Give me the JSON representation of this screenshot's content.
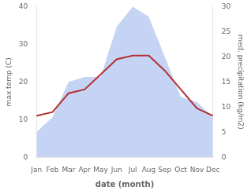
{
  "chart_data": {
    "type": "line",
    "categories": [
      "Jan",
      "Feb",
      "Mar",
      "Apr",
      "May",
      "Jun",
      "Jul",
      "Aug",
      "Sep",
      "Oct",
      "Nov",
      "Dec"
    ],
    "series": [
      {
        "type": "line",
        "color": "#b33030",
        "values": [
          11,
          12,
          17,
          18,
          22,
          26,
          27,
          27,
          23,
          18,
          13,
          11
        ]
      },
      {
        "type": "area",
        "color": "#c5d4f5",
        "axis": "y2",
        "values": [
          5,
          8,
          15,
          16,
          16,
          26,
          30,
          28,
          20,
          12,
          11,
          8
        ]
      }
    ],
    "xlabel": "date (month)",
    "ylabel": "max temp (C)",
    "y2label": "med. precipitation (kg/m2)",
    "ylim": [
      0,
      40
    ],
    "yticks": [
      0,
      10,
      20,
      30,
      40
    ],
    "y2lim": [
      0,
      30
    ],
    "y2ticks": [
      0,
      5,
      10,
      15,
      20,
      25,
      30
    ],
    "grid": false
  }
}
